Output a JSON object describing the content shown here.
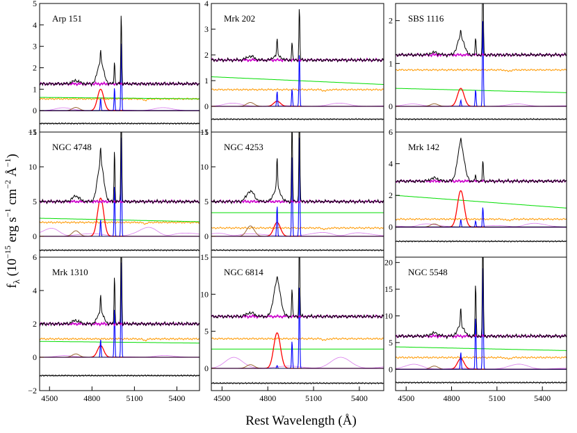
{
  "figure": {
    "xlabel": "Rest Wavelength (Å)",
    "ylabel": {
      "main": "f",
      "sub": "λ",
      "rest": " (10",
      "exp1": "−15",
      "unit1": " erg s",
      "exp2": "−1",
      "unit2": " cm",
      "exp3": "−2",
      "unit3": " Å",
      "exp4": "−1",
      "close": ")"
    }
  },
  "colors": {
    "observed": "#000000",
    "host_model": "#cc00cc",
    "stellar_template": "#ff9900",
    "power_law": "#00dd00",
    "broad_hbeta": "#ff0000",
    "narrow_lines": "#0000ff",
    "heii_broad": "#996633",
    "feii": "#dd88ee",
    "residual": "#000000"
  },
  "chart_data": [
    {
      "type": "line",
      "title": "Arp 151",
      "xlim": [
        4430,
        5560
      ],
      "ylim": [
        -1,
        5
      ],
      "xticks": [
        "4500",
        "4800",
        "5100",
        "5400"
      ],
      "yticks": [
        -1,
        0,
        1,
        2,
        3,
        4,
        5
      ],
      "continuum": 1.25,
      "stellar": 0.55,
      "powerlaw": [
        0.62,
        0.55
      ],
      "feii": 0.12,
      "heii": 0.15,
      "hbeta_broad": 1.0,
      "hbeta_narrow": 0.6,
      "oiii4959": 1.1,
      "oiii5007": 3.3,
      "residual": -0.6,
      "yaxis": "left"
    },
    {
      "type": "line",
      "title": "Mrk 202",
      "xlim": [
        4430,
        5560
      ],
      "ylim": [
        -1,
        4
      ],
      "xticks": [
        "4500",
        "4800",
        "5100",
        "5400"
      ],
      "yticks": [
        -1,
        0,
        1,
        2,
        3,
        4
      ],
      "continuum": 1.8,
      "stellar": 0.65,
      "powerlaw": [
        1.15,
        0.85
      ],
      "feii": 0.1,
      "heii": 0.15,
      "hbeta_broad": 0.2,
      "hbeta_narrow": 0.6,
      "oiii4959": 0.7,
      "oiii5007": 2.1,
      "residual": -0.5,
      "yaxis": "left"
    },
    {
      "type": "line",
      "title": "SBS 1116",
      "xlim": [
        4430,
        5560
      ],
      "ylim": [
        -0.6,
        2.4
      ],
      "xticks": [
        "4500",
        "4800",
        "5100",
        "5400"
      ],
      "yticks": [
        0,
        1,
        2
      ],
      "continuum": 1.2,
      "stellar": 0.85,
      "powerlaw": [
        0.42,
        0.32
      ],
      "feii": 0.05,
      "heii": 0.06,
      "hbeta_broad": 0.42,
      "hbeta_narrow": 0.15,
      "oiii4959": 0.4,
      "oiii5007": 2.1,
      "residual": -0.3,
      "yaxis": "right"
    },
    {
      "type": "line",
      "title": "NGC 4748",
      "xlim": [
        4430,
        5560
      ],
      "ylim": [
        -3,
        15
      ],
      "xticks": [
        "4500",
        "4800",
        "5100",
        "5400"
      ],
      "yticks": [
        0,
        5,
        10,
        15
      ],
      "continuum": 5.0,
      "stellar": 2.0,
      "powerlaw": [
        2.6,
        2.1
      ],
      "feii": 1.5,
      "heii": 0.8,
      "hbeta_broad": 5.5,
      "hbeta_narrow": 2.5,
      "oiii4959": 7.5,
      "oiii5007": 15,
      "residual": -2.0,
      "yaxis": "left"
    },
    {
      "type": "line",
      "title": "NGC 4253",
      "xlim": [
        4430,
        5560
      ],
      "ylim": [
        -3,
        15
      ],
      "xticks": [
        "4500",
        "4800",
        "5100",
        "5400"
      ],
      "yticks": [
        0,
        5,
        10,
        15
      ],
      "continuum": 5.0,
      "stellar": 1.2,
      "powerlaw": [
        3.4,
        3.4
      ],
      "feii": 1.0,
      "heii": 1.5,
      "hbeta_broad": 2.0,
      "hbeta_narrow": 4.5,
      "oiii4959": 12,
      "oiii5007": 15,
      "residual": -2.0,
      "yaxis": "left"
    },
    {
      "type": "line",
      "title": "Mrk 142",
      "xlim": [
        4430,
        5560
      ],
      "ylim": [
        -1.9,
        6
      ],
      "xticks": [
        "4500",
        "4800",
        "5100",
        "5400"
      ],
      "yticks": [
        0,
        2,
        4,
        6
      ],
      "continuum": 2.9,
      "stellar": 0.5,
      "powerlaw": [
        2.0,
        1.2
      ],
      "feii": 0.3,
      "heii": 0.2,
      "hbeta_broad": 2.3,
      "hbeta_narrow": 0.5,
      "oiii4959": 0.4,
      "oiii5007": 1.3,
      "residual": -0.9,
      "yaxis": "right"
    },
    {
      "type": "line",
      "title": "Mrk 1310",
      "xlim": [
        4430,
        5560
      ],
      "ylim": [
        -2,
        6
      ],
      "xticks": [
        "4500",
        "4800",
        "5100",
        "5400"
      ],
      "yticks": [
        -2,
        0,
        2,
        4,
        6
      ],
      "continuum": 2.0,
      "stellar": 1.1,
      "powerlaw": [
        0.95,
        0.85
      ],
      "feii": 0.1,
      "heii": 0.2,
      "hbeta_broad": 0.7,
      "hbeta_narrow": 1.1,
      "oiii4959": 3.0,
      "oiii5007": 6,
      "residual": -1.1,
      "yaxis": "left"
    },
    {
      "type": "line",
      "title": "NGC 6814",
      "xlim": [
        4430,
        5560
      ],
      "ylim": [
        -3,
        15
      ],
      "xticks": [
        "4500",
        "4800",
        "5100",
        "5400"
      ],
      "yticks": [
        0,
        5,
        10,
        15
      ],
      "continuum": 7.0,
      "stellar": 4.0,
      "powerlaw": [
        2.6,
        2.6
      ],
      "feii": 1.2,
      "heii": 0.5,
      "hbeta_broad": 4.8,
      "hbeta_narrow": 0.4,
      "oiii4959": 3.8,
      "oiii5007": 11.5,
      "residual": -2.0,
      "yaxis": "left"
    },
    {
      "type": "line",
      "title": "NGC 5548",
      "xlim": [
        4430,
        5560
      ],
      "ylim": [
        -4,
        21
      ],
      "xticks": [
        "4500",
        "4800",
        "5100",
        "5400"
      ],
      "yticks": [
        0,
        5,
        10,
        15,
        20
      ],
      "continuum": 6.2,
      "stellar": 2.2,
      "powerlaw": [
        4.2,
        3.5
      ],
      "feii": 0.8,
      "heii": 0.6,
      "hbeta_broad": 2.0,
      "hbeta_narrow": 3.3,
      "oiii4959": 10,
      "oiii5007": 20,
      "residual": -2.5,
      "yaxis": "right"
    }
  ]
}
